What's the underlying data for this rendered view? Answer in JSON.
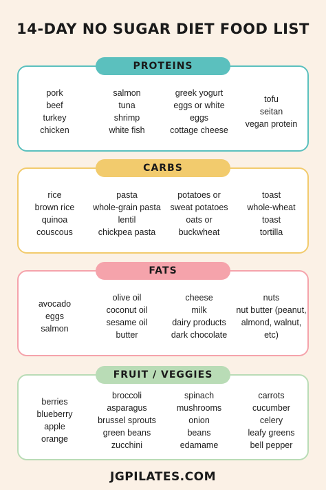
{
  "title": "14-DAY NO SUGAR DIET FOOD LIST",
  "footer": "JGPILATES.COM",
  "colors": {
    "background": "#fbf1e6",
    "proteins": "#5bc0be",
    "carbs": "#f2cb6d",
    "fats": "#f5a3ab",
    "fruit_veggies": "#b9dcb6"
  },
  "sections": [
    {
      "label": "PROTEINS",
      "columns": [
        [
          "pork",
          "beef",
          "turkey",
          "chicken"
        ],
        [
          "salmon",
          "tuna",
          "shrimp",
          "white fish"
        ],
        [
          "greek yogurt",
          "eggs or white",
          "eggs",
          "cottage cheese"
        ],
        [
          "tofu",
          "seitan",
          "vegan protein"
        ]
      ]
    },
    {
      "label": "CARBS",
      "columns": [
        [
          "rice",
          "brown rice",
          "quinoa",
          "couscous"
        ],
        [
          "pasta",
          "whole-grain pasta",
          "lentil",
          "chickpea pasta"
        ],
        [
          "potatoes or",
          "sweat potatoes",
          "oats or",
          "buckwheat"
        ],
        [
          "toast",
          "whole-wheat",
          "toast",
          "tortilla"
        ]
      ]
    },
    {
      "label": "FATS",
      "columns": [
        [
          "avocado",
          "eggs",
          "salmon"
        ],
        [
          "olive oil",
          "coconut oil",
          "sesame oil",
          "butter"
        ],
        [
          "cheese",
          "milk",
          "dairy products",
          "dark chocolate"
        ],
        [
          "nuts",
          "nut butter (peanut,",
          "almond, walnut,",
          "etc)"
        ]
      ]
    },
    {
      "label": "FRUIT / VEGGIES",
      "columns": [
        [
          "berries",
          "blueberry",
          "apple",
          "orange"
        ],
        [
          "broccoli",
          "asparagus",
          "brussel sprouts",
          "green beans",
          "zucchini"
        ],
        [
          "spinach",
          "mushrooms",
          "onion",
          "beans",
          "edamame"
        ],
        [
          "carrots",
          "cucumber",
          "celery",
          "leafy greens",
          "bell pepper"
        ]
      ]
    }
  ]
}
